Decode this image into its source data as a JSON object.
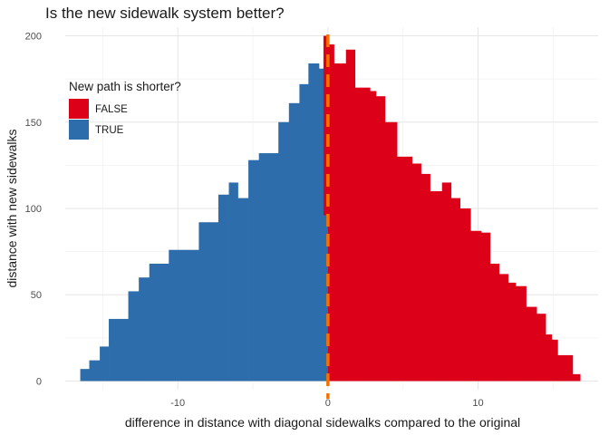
{
  "chart_data": {
    "type": "bar",
    "title": "Is the new sidewalk system better?",
    "xlabel": "difference in distance with diagonal sidewalks compared to the original",
    "ylabel": "distance with new sidewalks",
    "xlim": [
      -17.5,
      18
    ],
    "ylim": [
      -5,
      205
    ],
    "x_ticks": [
      -10,
      0,
      10
    ],
    "y_ticks": [
      0,
      50,
      100,
      150,
      200
    ],
    "grid": true,
    "reference_line": {
      "x": 0,
      "color": "#F57200",
      "style": "dashed"
    },
    "legend": {
      "title": "New path is shorter?",
      "placement": "top-left",
      "entries": [
        {
          "label": "FALSE",
          "color": "#DC0019"
        },
        {
          "label": "TRUE",
          "color": "#2E6DAB"
        }
      ]
    },
    "series": [
      {
        "name": "TRUE",
        "color": "#2E6DAB",
        "bars": [
          {
            "x0": -16.5,
            "x1": -15.9,
            "y0": 0,
            "y1": 7
          },
          {
            "x0": -15.9,
            "x1": -15.2,
            "y0": 0,
            "y1": 12
          },
          {
            "x0": -15.2,
            "x1": -14.6,
            "y0": 0,
            "y1": 20
          },
          {
            "x0": -14.6,
            "x1": -13.3,
            "y0": 0,
            "y1": 36
          },
          {
            "x0": -13.3,
            "x1": -12.6,
            "y0": 0,
            "y1": 52
          },
          {
            "x0": -12.6,
            "x1": -11.9,
            "y0": 0,
            "y1": 60
          },
          {
            "x0": -11.9,
            "x1": -11.3,
            "y0": 0,
            "y1": 68
          },
          {
            "x0": -11.3,
            "x1": -10.6,
            "y0": 0,
            "y1": 68
          },
          {
            "x0": -10.6,
            "x1": -9.3,
            "y0": 0,
            "y1": 76
          },
          {
            "x0": -9.3,
            "x1": -8.6,
            "y0": 0,
            "y1": 76
          },
          {
            "x0": -8.6,
            "x1": -7.9,
            "y0": 0,
            "y1": 92
          },
          {
            "x0": -7.9,
            "x1": -7.3,
            "y0": 0,
            "y1": 92
          },
          {
            "x0": -7.3,
            "x1": -6.6,
            "y0": 0,
            "y1": 108
          },
          {
            "x0": -6.6,
            "x1": -6.0,
            "y0": 0,
            "y1": 115
          },
          {
            "x0": -6.0,
            "x1": -5.3,
            "y0": 0,
            "y1": 106
          },
          {
            "x0": -5.3,
            "x1": -4.6,
            "y0": 0,
            "y1": 128
          },
          {
            "x0": -4.6,
            "x1": -3.3,
            "y0": 0,
            "y1": 132
          },
          {
            "x0": -3.3,
            "x1": -2.6,
            "y0": 0,
            "y1": 150
          },
          {
            "x0": -2.6,
            "x1": -1.9,
            "y0": 0,
            "y1": 161
          },
          {
            "x0": -1.9,
            "x1": -1.3,
            "y0": 0,
            "y1": 172
          },
          {
            "x0": -1.3,
            "x1": -0.6,
            "y0": 0,
            "y1": 184
          },
          {
            "x0": -0.6,
            "x1": 0.0,
            "y0": 0,
            "y1": 181
          }
        ]
      },
      {
        "name": "FALSE",
        "color": "#DC0019",
        "bars": [
          {
            "x0": -0.3,
            "x1": 0.0,
            "y0": 96,
            "y1": 200
          },
          {
            "x0": 0.0,
            "x1": 0.4,
            "y0": 0,
            "y1": 195
          },
          {
            "x0": 0.4,
            "x1": 1.2,
            "y0": 0,
            "y1": 184
          },
          {
            "x0": 1.2,
            "x1": 1.8,
            "y0": 0,
            "y1": 192
          },
          {
            "x0": 1.8,
            "x1": 2.2,
            "y0": 0,
            "y1": 170
          },
          {
            "x0": 2.2,
            "x1": 2.8,
            "y0": 0,
            "y1": 170
          },
          {
            "x0": 2.8,
            "x1": 3.2,
            "y0": 0,
            "y1": 168
          },
          {
            "x0": 3.2,
            "x1": 3.8,
            "y0": 0,
            "y1": 165
          },
          {
            "x0": 3.8,
            "x1": 4.6,
            "y0": 0,
            "y1": 150
          },
          {
            "x0": 4.6,
            "x1": 5.6,
            "y0": 0,
            "y1": 130
          },
          {
            "x0": 5.6,
            "x1": 6.2,
            "y0": 0,
            "y1": 126
          },
          {
            "x0": 6.2,
            "x1": 6.8,
            "y0": 0,
            "y1": 120
          },
          {
            "x0": 6.8,
            "x1": 7.6,
            "y0": 0,
            "y1": 110
          },
          {
            "x0": 7.6,
            "x1": 8.2,
            "y0": 0,
            "y1": 115
          },
          {
            "x0": 8.2,
            "x1": 8.8,
            "y0": 0,
            "y1": 106
          },
          {
            "x0": 8.8,
            "x1": 9.5,
            "y0": 0,
            "y1": 100
          },
          {
            "x0": 9.5,
            "x1": 10.2,
            "y0": 0,
            "y1": 87
          },
          {
            "x0": 10.2,
            "x1": 10.8,
            "y0": 0,
            "y1": 86
          },
          {
            "x0": 10.8,
            "x1": 11.4,
            "y0": 0,
            "y1": 68
          },
          {
            "x0": 11.4,
            "x1": 12.0,
            "y0": 0,
            "y1": 62
          },
          {
            "x0": 12.0,
            "x1": 12.5,
            "y0": 0,
            "y1": 57
          },
          {
            "x0": 12.5,
            "x1": 13.2,
            "y0": 0,
            "y1": 55
          },
          {
            "x0": 13.2,
            "x1": 13.9,
            "y0": 0,
            "y1": 43
          },
          {
            "x0": 13.9,
            "x1": 14.5,
            "y0": 0,
            "y1": 39
          },
          {
            "x0": 14.5,
            "x1": 14.9,
            "y0": 0,
            "y1": 27
          },
          {
            "x0": 14.9,
            "x1": 15.3,
            "y0": 0,
            "y1": 24
          },
          {
            "x0": 15.3,
            "x1": 16.3,
            "y0": 0,
            "y1": 15
          },
          {
            "x0": 16.3,
            "x1": 16.8,
            "y0": 0,
            "y1": 4
          }
        ]
      }
    ]
  }
}
